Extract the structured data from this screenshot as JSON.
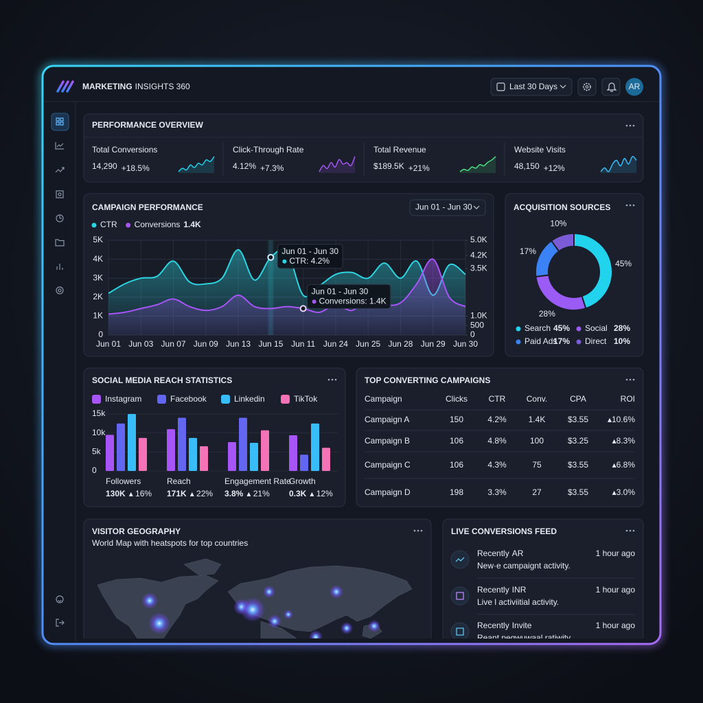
{
  "header": {
    "brand": "MARKETING",
    "brand_accent": "INSIGHTS 360",
    "date_range": "Last 30 Days",
    "avatar": "AR"
  },
  "overview": {
    "title": "PERFORMANCE OVERVIEW",
    "kpis": [
      {
        "label": "Total Conversions",
        "value": "14,290",
        "change": "+18.5%",
        "color": "#22d3ee",
        "trend": [
          3,
          4,
          3.5,
          5,
          4.2,
          5.5,
          5,
          6.5,
          6,
          7.5
        ]
      },
      {
        "label": "Click-Through Rate",
        "value": "4.12%",
        "change": "+7.3%",
        "color": "#a855f7",
        "trend": [
          3,
          5,
          4,
          6,
          4.5,
          7,
          5.5,
          6,
          5,
          8
        ]
      },
      {
        "label": "Total Revenue",
        "value": "$189.5K",
        "change": "+21%",
        "color": "#4ade80",
        "trend": [
          2,
          3,
          2.5,
          4,
          3.5,
          5,
          4.5,
          6,
          7,
          8.5
        ]
      },
      {
        "label": "Website Visits",
        "value": "48,150",
        "change": "+12%",
        "color": "#38bdf8",
        "trend": [
          3,
          4,
          3,
          5,
          6,
          4.5,
          6.5,
          5,
          7,
          6
        ]
      }
    ]
  },
  "chart_data": [
    {
      "type": "line",
      "title": "CAMPAIGN PERFORMANCE",
      "date_selector": "Jun 01 - Jun 30",
      "categories": [
        "Jun 01",
        null,
        "Jun 03",
        null,
        "Jun 07",
        null,
        "Jun 09",
        null,
        "Jun 13",
        null,
        "Jun 15",
        null,
        "Jun 11",
        null,
        "Jun 24",
        null,
        "Jun 25",
        null,
        "Jun 28",
        null,
        "Jun 29",
        null,
        "Jun 30"
      ],
      "series": [
        {
          "name": "CTR",
          "color": "#2dd4e0",
          "values": [
            2200,
            2700,
            3000,
            3100,
            3900,
            2800,
            2700,
            3000,
            4500,
            2900,
            4100,
            4400,
            2100,
            2600,
            3200,
            3300,
            3000,
            3800,
            3000,
            3900,
            2100,
            3700,
            3200
          ]
        },
        {
          "name": "Conversions",
          "legend_value": "1.4K",
          "color": "#a855f7",
          "axis": "y2",
          "values": [
            1100,
            1200,
            1400,
            1600,
            1900,
            1500,
            1300,
            1500,
            2100,
            1500,
            1400,
            1500,
            1400,
            1200,
            1600,
            1300,
            1900,
            1600,
            1700,
            2700,
            4000,
            2000,
            1500
          ]
        }
      ],
      "ylim": [
        0,
        5000
      ],
      "yticks": [
        0,
        {
          "value": 1000,
          "label": "1K"
        },
        {
          "value": 2000,
          "label": "2K"
        },
        {
          "value": 3000,
          "label": "3K"
        },
        {
          "value": 4000,
          "label": "4K"
        },
        {
          "value": 5000,
          "label": "5K"
        }
      ],
      "y2lim": [
        0,
        5000
      ],
      "y2ticks": [
        0,
        500,
        {
          "value": 1000,
          "label": "1.0K"
        },
        {
          "value": 3500,
          "label": "3.5K"
        },
        {
          "value": 4200,
          "label": "4.2K"
        },
        {
          "value": 5000,
          "label": "5.0K"
        }
      ],
      "grid": true,
      "annotations": [
        {
          "title": "Jun 01 - Jun 30",
          "text": "CTR: 4.2%"
        },
        {
          "title": "Jun 01 - Jun 30",
          "text": "Conversions: 1.4K"
        }
      ]
    },
    {
      "type": "pie",
      "donut": true,
      "title": "ACQUISITION SOURCES",
      "categories": [
        "Search",
        "Social",
        "Paid Ads",
        "Direct"
      ],
      "values": [
        45,
        28,
        17,
        10
      ],
      "value_labels": [
        "45%",
        "28%",
        "17%",
        "10%"
      ],
      "colors": [
        "#22d3ee",
        "#9b5cf6",
        "#3b82f6",
        "#7c5cd6"
      ]
    },
    {
      "type": "bar",
      "title": "SOCIAL MEDIA REACH STATISTICS",
      "categories": [
        "Followers",
        "Reach",
        "Engagement Rate",
        "Growth"
      ],
      "series": [
        {
          "name": "Instagram",
          "color": "#a855f7",
          "values": [
            9500,
            11000,
            7600,
            9400
          ]
        },
        {
          "name": "Facebook",
          "color": "#6366f1",
          "values": [
            12500,
            14000,
            14000,
            4300
          ]
        },
        {
          "name": "Linkedin",
          "color": "#38bdf8",
          "values": [
            15000,
            8700,
            7400,
            12500
          ]
        },
        {
          "name": "TikTok",
          "color": "#f472b6",
          "values": [
            8700,
            6500,
            10700,
            6100
          ]
        }
      ],
      "ylim": [
        0,
        15000
      ],
      "yticks": [
        0,
        {
          "value": 5000,
          "label": "5k"
        },
        {
          "value": 10000,
          "label": "10k"
        },
        {
          "value": 15000,
          "label": "15k"
        }
      ],
      "grid": true,
      "stats": [
        {
          "value": "130K",
          "change": "▴ 16%"
        },
        {
          "value": "171K",
          "change": "▴ 22%"
        },
        {
          "value": "3.8%",
          "change": "▴ 21%"
        },
        {
          "value": "0.3K",
          "change": "▴ 12%"
        }
      ]
    }
  ],
  "campaigns_table": {
    "title": "TOP CONVERTING CAMPAIGNS",
    "columns": [
      "Campaign",
      "Clicks",
      "CTR",
      "Conv.",
      "CPA",
      "ROI"
    ],
    "rows": [
      [
        "Campaign A",
        "150",
        "4.2%",
        "1.4K",
        "$3.55",
        "▴10.6%"
      ],
      [
        "Campaign B",
        "106",
        "4.8%",
        "100",
        "$3.25",
        "▴8.3%"
      ],
      [
        "Campaign C",
        "106",
        "4.3%",
        "75",
        "$3.55",
        "▴6.8%"
      ],
      [
        "Campaign D",
        "198",
        "3.3%",
        "27",
        "$3.55",
        "▴3.0%"
      ]
    ]
  },
  "geography": {
    "title": "VISITOR GEOGRAPHY",
    "subtitle": "World Map with heatspots for top countries"
  },
  "feed": {
    "title": "LIVE CONVERSIONS FEED",
    "items": [
      {
        "title": "Recently",
        "highlight": "AR",
        "time": "1 hour ago",
        "text": "New·e campaignt activity."
      },
      {
        "title": "Recently",
        "highlight": "INR",
        "time": "1 hour ago",
        "text": "Live l activiitial activity."
      },
      {
        "title": "Recently",
        "highlight": "Invite",
        "time": "1 hour ago",
        "text": "Reant pegwuwaal ratiwity"
      }
    ]
  }
}
